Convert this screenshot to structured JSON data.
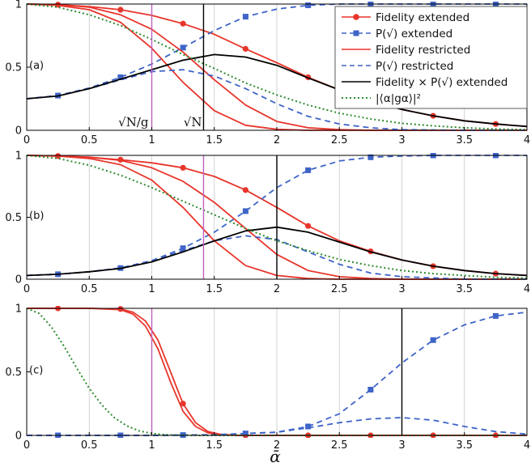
{
  "chart_data": {
    "type": "line",
    "xlabel": "ᾱ",
    "xlim": [
      0,
      4
    ],
    "xticks": [
      "0",
      "0.5",
      "1",
      "1.5",
      "2",
      "2.5",
      "3",
      "3.5",
      "4"
    ],
    "ylim": [
      0,
      1
    ],
    "yticks": [
      "0",
      "0.5",
      "1"
    ],
    "grid": "x-only",
    "legend": {
      "placement": "top-right of panel (a)",
      "entries": [
        {
          "label": "Fidelity extended",
          "color": "#e8352b",
          "style": "solid with circle markers"
        },
        {
          "label": "P(√) extended",
          "color": "#3e64c8",
          "style": "dashed with square markers"
        },
        {
          "label": "Fidelity restricted",
          "color": "#e8352b",
          "style": "solid"
        },
        {
          "label": "P(√) restricted",
          "color": "#3e64c8",
          "style": "dashed"
        },
        {
          "label": "Fidelity × P(√) extended",
          "color": "#000000",
          "style": "solid"
        },
        {
          "label": "|⟨α|gα⟩|²",
          "color": "#2e8b2e",
          "style": "dotted"
        }
      ]
    },
    "panels": [
      {
        "label": "(a)",
        "g": 1.414,
        "vlines": [
          {
            "x": 1.0,
            "color": "#c060c0",
            "annotation": "√N/g"
          },
          {
            "x": 1.414,
            "color": "#000000",
            "annotation": "√N"
          }
        ],
        "series": [
          {
            "name": "Fidelity extended",
            "x": [
              0,
              0.25,
              0.5,
              0.75,
              1,
              1.25,
              1.5,
              1.75,
              2,
              2.25,
              2.5,
              2.75,
              3,
              3.25,
              3.5,
              3.75,
              4
            ],
            "y": [
              1.0,
              0.995,
              0.98,
              0.955,
              0.91,
              0.845,
              0.76,
              0.645,
              0.535,
              0.42,
              0.32,
              0.235,
              0.165,
              0.115,
              0.075,
              0.05,
              0.03
            ]
          },
          {
            "name": "P(√) extended",
            "x": [
              0,
              0.25,
              0.5,
              0.75,
              1,
              1.25,
              1.5,
              1.75,
              2,
              2.25,
              2.5,
              2.75,
              3,
              3.25,
              3.5,
              3.75,
              4
            ],
            "y": [
              0.25,
              0.275,
              0.335,
              0.42,
              0.525,
              0.655,
              0.79,
              0.9,
              0.96,
              0.99,
              1.0,
              1.0,
              1.0,
              1.0,
              1.0,
              1.0,
              1.0
            ]
          },
          {
            "name": "Fidelity restricted (upper)",
            "x": [
              0,
              0.25,
              0.5,
              0.75,
              1,
              1.25,
              1.5,
              1.75,
              2,
              2.25,
              2.5,
              2.75,
              3,
              3.5,
              4
            ],
            "y": [
              1.0,
              0.995,
              0.975,
              0.915,
              0.8,
              0.62,
              0.4,
              0.2,
              0.07,
              0.02,
              0.005,
              0.0,
              0.0,
              0.0,
              0.0
            ]
          },
          {
            "name": "Fidelity restricted (lower)",
            "x": [
              0,
              0.25,
              0.5,
              0.75,
              1,
              1.25,
              1.5,
              1.75,
              2,
              2.25,
              2.5,
              3,
              3.5,
              4
            ],
            "y": [
              1.0,
              0.99,
              0.955,
              0.855,
              0.65,
              0.38,
              0.155,
              0.04,
              0.008,
              0.0,
              0.0,
              0.0,
              0.0,
              0.0
            ]
          },
          {
            "name": "P(√) restricted",
            "x": [
              0,
              0.25,
              0.5,
              0.75,
              1,
              1.25,
              1.5,
              1.75,
              2,
              2.25,
              2.5,
              2.75,
              3,
              3.5,
              4
            ],
            "y": [
              0.25,
              0.275,
              0.33,
              0.4,
              0.465,
              0.48,
              0.43,
              0.33,
              0.21,
              0.11,
              0.05,
              0.02,
              0.005,
              0.0,
              0.0
            ]
          },
          {
            "name": "Fidelity × P(√) extended",
            "x": [
              0,
              0.25,
              0.5,
              0.75,
              1,
              1.25,
              1.5,
              1.75,
              2,
              2.25,
              2.5,
              2.75,
              3,
              3.25,
              3.5,
              3.75,
              4
            ],
            "y": [
              0.25,
              0.272,
              0.33,
              0.405,
              0.48,
              0.555,
              0.6,
              0.58,
              0.515,
              0.415,
              0.32,
              0.235,
              0.165,
              0.115,
              0.075,
              0.05,
              0.03
            ]
          },
          {
            "name": "|⟨α|gα⟩|²",
            "x": [
              0,
              0.25,
              0.5,
              0.75,
              1,
              1.25,
              1.5,
              1.75,
              2,
              2.25,
              2.5,
              2.75,
              3,
              3.25,
              3.5,
              3.75,
              4
            ],
            "y": [
              1.0,
              0.975,
              0.915,
              0.83,
              0.72,
              0.6,
              0.49,
              0.375,
              0.28,
              0.2,
              0.135,
              0.09,
              0.055,
              0.035,
              0.02,
              0.01,
              0.005
            ]
          }
        ]
      },
      {
        "label": "(b)",
        "g": 1.414,
        "vlines": [
          {
            "x": 1.414,
            "color": "#c060c0"
          },
          {
            "x": 2.0,
            "color": "#000000"
          }
        ],
        "series": [
          {
            "name": "Fidelity extended",
            "x": [
              0,
              0.25,
              0.5,
              0.75,
              1,
              1.25,
              1.5,
              1.75,
              2,
              2.25,
              2.5,
              2.75,
              3,
              3.25,
              3.5,
              3.75,
              4
            ],
            "y": [
              1.0,
              0.995,
              0.985,
              0.965,
              0.94,
              0.9,
              0.83,
              0.72,
              0.58,
              0.43,
              0.31,
              0.225,
              0.155,
              0.105,
              0.07,
              0.045,
              0.03
            ]
          },
          {
            "name": "P(√) extended",
            "x": [
              0,
              0.25,
              0.5,
              0.75,
              1,
              1.25,
              1.5,
              1.75,
              2,
              2.25,
              2.5,
              2.75,
              3,
              3.25,
              3.5,
              3.75,
              4
            ],
            "y": [
              0.03,
              0.04,
              0.06,
              0.09,
              0.15,
              0.25,
              0.38,
              0.55,
              0.74,
              0.88,
              0.955,
              0.985,
              0.995,
              1.0,
              1.0,
              1.0,
              1.0
            ]
          },
          {
            "name": "Fidelity restricted (upper)",
            "x": [
              0,
              0.25,
              0.5,
              0.75,
              1,
              1.25,
              1.5,
              1.75,
              2,
              2.25,
              2.5,
              2.75,
              3,
              3.5,
              4
            ],
            "y": [
              1.0,
              0.995,
              0.985,
              0.96,
              0.9,
              0.79,
              0.62,
              0.41,
              0.2,
              0.07,
              0.02,
              0.005,
              0.0,
              0.0,
              0.0
            ]
          },
          {
            "name": "Fidelity restricted (lower)",
            "x": [
              0,
              0.25,
              0.5,
              0.75,
              1,
              1.25,
              1.5,
              1.75,
              2,
              2.25,
              2.5,
              3,
              3.5,
              4
            ],
            "y": [
              1.0,
              0.995,
              0.975,
              0.925,
              0.8,
              0.58,
              0.31,
              0.11,
              0.03,
              0.005,
              0.0,
              0.0,
              0.0,
              0.0
            ]
          },
          {
            "name": "P(√) restricted",
            "x": [
              0,
              0.25,
              0.5,
              0.75,
              1,
              1.25,
              1.5,
              1.75,
              2,
              2.25,
              2.5,
              2.75,
              3,
              3.5,
              4
            ],
            "y": [
              0.03,
              0.04,
              0.06,
              0.09,
              0.15,
              0.23,
              0.31,
              0.35,
              0.32,
              0.22,
              0.12,
              0.05,
              0.02,
              0.0,
              0.0
            ]
          },
          {
            "name": "Fidelity × P(√) extended",
            "x": [
              0,
              0.25,
              0.5,
              0.75,
              1,
              1.25,
              1.5,
              1.75,
              2,
              2.25,
              2.5,
              2.75,
              3,
              3.25,
              3.5,
              3.75,
              4
            ],
            "y": [
              0.03,
              0.04,
              0.06,
              0.087,
              0.14,
              0.22,
              0.31,
              0.39,
              0.42,
              0.38,
              0.3,
              0.22,
              0.155,
              0.105,
              0.07,
              0.045,
              0.03
            ]
          },
          {
            "name": "|⟨α|gα⟩|²",
            "x": [
              0,
              0.25,
              0.5,
              0.75,
              1,
              1.25,
              1.5,
              1.75,
              2,
              2.25,
              2.5,
              2.75,
              3,
              3.25,
              3.5,
              3.75,
              4
            ],
            "y": [
              1.0,
              0.975,
              0.92,
              0.84,
              0.74,
              0.63,
              0.52,
              0.41,
              0.31,
              0.23,
              0.16,
              0.11,
              0.07,
              0.045,
              0.03,
              0.015,
              0.01
            ]
          }
        ]
      },
      {
        "label": "(c)",
        "g": 3,
        "vlines": [
          {
            "x": 1.0,
            "color": "#c060c0"
          },
          {
            "x": 3.0,
            "color": "#000000"
          }
        ],
        "series": [
          {
            "name": "Fidelity extended",
            "x": [
              0,
              0.25,
              0.5,
              0.75,
              0.85,
              0.95,
              1.05,
              1.15,
              1.25,
              1.35,
              1.45,
              1.55,
              1.7,
              2,
              2.5,
              3,
              3.5,
              4
            ],
            "y": [
              1.0,
              1.0,
              1.0,
              0.995,
              0.97,
              0.9,
              0.75,
              0.5,
              0.25,
              0.1,
              0.03,
              0.008,
              0.0,
              0.0,
              0.0,
              0.0,
              0.0,
              0.0
            ]
          },
          {
            "name": "P(√) extended",
            "x": [
              0,
              0.5,
              1,
              1.5,
              2,
              2.25,
              2.5,
              2.75,
              3,
              3.25,
              3.5,
              3.75,
              4
            ],
            "y": [
              0.0,
              0.0,
              0.0,
              0.005,
              0.025,
              0.07,
              0.17,
              0.36,
              0.57,
              0.75,
              0.87,
              0.94,
              0.97
            ]
          },
          {
            "name": "Fidelity restricted",
            "x": [
              0,
              0.25,
              0.5,
              0.75,
              0.85,
              0.95,
              1.05,
              1.15,
              1.25,
              1.35,
              1.45,
              1.55,
              1.7,
              2,
              2.5,
              3,
              3.5,
              4
            ],
            "y": [
              1.0,
              1.0,
              1.0,
              0.99,
              0.955,
              0.86,
              0.68,
              0.42,
              0.19,
              0.07,
              0.02,
              0.005,
              0.0,
              0.0,
              0.0,
              0.0,
              0.0,
              0.0
            ]
          },
          {
            "name": "P(√) restricted",
            "x": [
              0,
              0.5,
              1,
              1.5,
              2,
              2.25,
              2.5,
              2.75,
              3,
              3.25,
              3.5,
              3.75,
              4
            ],
            "y": [
              0.0,
              0.0,
              0.0,
              0.005,
              0.025,
              0.06,
              0.1,
              0.13,
              0.14,
              0.12,
              0.07,
              0.03,
              0.01
            ]
          },
          {
            "name": "|⟨α|gα⟩|²",
            "x": [
              0,
              0.1,
              0.2,
              0.3,
              0.4,
              0.5,
              0.6,
              0.7,
              0.8,
              0.9,
              1.0,
              1.1,
              1.2,
              1.4,
              1.6,
              2,
              4
            ],
            "y": [
              1.0,
              0.96,
              0.85,
              0.7,
              0.53,
              0.37,
              0.24,
              0.14,
              0.075,
              0.035,
              0.015,
              0.006,
              0.002,
              0.0,
              0.0,
              0.0,
              0.0
            ]
          }
        ]
      }
    ]
  }
}
